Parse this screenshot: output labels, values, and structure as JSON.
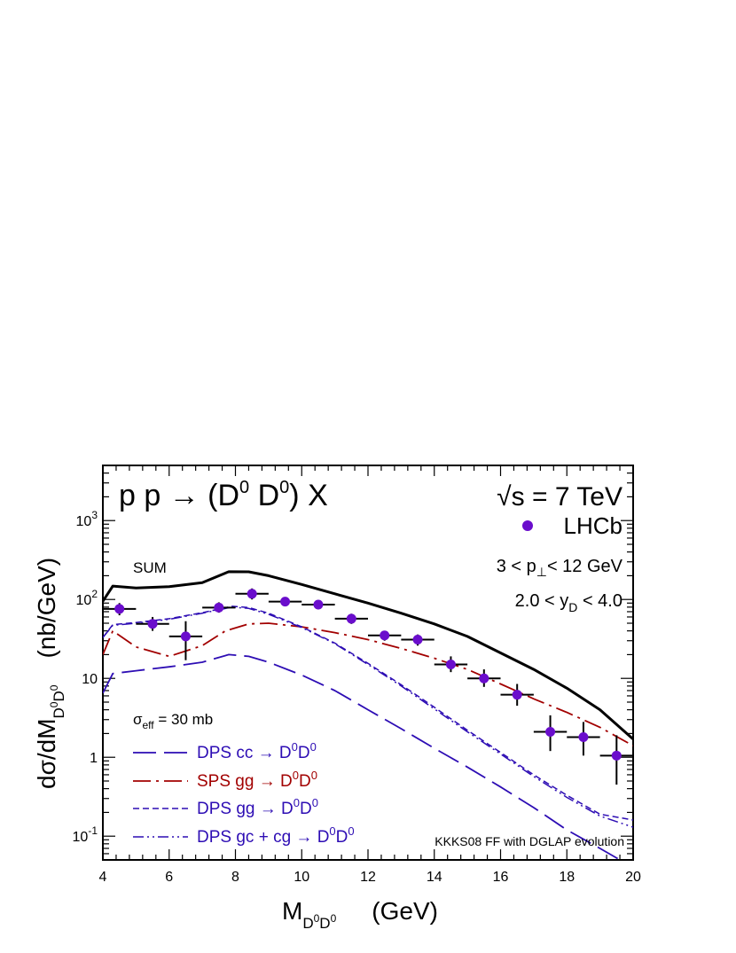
{
  "chart_data": {
    "type": "line",
    "title": "p p → (D0 D0) X",
    "energy": "√s = 7 TeV",
    "xlabel": "M_{D0D0}   (GeV)",
    "ylabel": "dσ/dM_{D0D0}   (nb/GeV)",
    "xlim": [
      4,
      20
    ],
    "ylim": [
      0.05,
      5000
    ],
    "yscale": "log",
    "xticks": [
      4,
      6,
      8,
      10,
      12,
      14,
      16,
      18,
      20
    ],
    "yticks": [
      {
        "value": 1000,
        "label": "10^3"
      },
      {
        "value": 100,
        "label": "10^2"
      },
      {
        "value": 10,
        "label": "10"
      },
      {
        "value": 1,
        "label": "1"
      },
      {
        "value": 0.1,
        "label": "10^-1"
      }
    ],
    "annotations": {
      "sum": "SUM",
      "cuts_pt": "3 < p⊥< 12 GeV",
      "cuts_y": "2.0 < yD < 4.0",
      "sigma_eff": "σeff = 30 mb",
      "ff": "KKKS08 FF with DGLAP evolution"
    },
    "series": [
      {
        "name": "SUM",
        "style": "solid",
        "color": "#000000",
        "x": [
          4,
          4.3,
          5,
          6,
          7,
          7.8,
          8.4,
          9,
          10,
          11,
          12,
          13,
          14,
          15,
          16,
          17,
          18,
          19,
          20
        ],
        "y": [
          95,
          148,
          140,
          145,
          163,
          225,
          224,
          200,
          155,
          118,
          90,
          67,
          49,
          34,
          21,
          13,
          7.5,
          4.0,
          1.7
        ]
      },
      {
        "name": "DPS cc → D0D0",
        "style": "long-dash",
        "color": "#2d0db4",
        "x": [
          4,
          4.3,
          5,
          6,
          7,
          7.8,
          8.4,
          9,
          10,
          11,
          12,
          13,
          14,
          15,
          16,
          17,
          18,
          19,
          20
        ],
        "y": [
          6.5,
          11.5,
          12.5,
          14,
          16,
          20,
          19,
          16,
          11,
          7,
          4,
          2.3,
          1.3,
          0.75,
          0.42,
          0.23,
          0.12,
          0.07,
          0.04
        ]
      },
      {
        "name": "SPS gg → D0D0",
        "style": "dash-dot",
        "color": "#a20000",
        "x": [
          4,
          4.3,
          5,
          6,
          7,
          7.7,
          8.4,
          9,
          10,
          11,
          12,
          13,
          14,
          15,
          16,
          17,
          18,
          19,
          20
        ],
        "y": [
          20,
          40,
          25,
          19,
          26,
          40,
          49,
          50,
          45,
          38,
          31,
          24,
          18,
          13,
          8.5,
          5.5,
          3.7,
          2.4,
          1.4
        ]
      },
      {
        "name": "DPS gg → D0D0",
        "style": "short-dash",
        "color": "#2d0db4",
        "x": [
          4,
          4.3,
          5,
          6,
          7,
          7.9,
          8.4,
          9,
          10,
          11,
          12,
          13,
          14,
          15,
          16,
          17,
          18,
          19,
          20
        ],
        "y": [
          33,
          48,
          51,
          57,
          68,
          82,
          79,
          67,
          45,
          28,
          15.5,
          8.3,
          4.3,
          2.2,
          1.15,
          0.6,
          0.33,
          0.19,
          0.16
        ]
      },
      {
        "name": "DPS gc + cg → D0D0",
        "style": "dash-dot-dot",
        "color": "#2d0db4",
        "x": [
          4,
          4.3,
          5,
          6,
          7,
          7.9,
          8.4,
          9,
          10,
          11,
          12,
          13,
          14,
          15,
          16,
          17,
          18,
          19,
          20
        ],
        "y": [
          33,
          47,
          50,
          56,
          67,
          80,
          77,
          65,
          44,
          27.5,
          15,
          8,
          4.1,
          2.1,
          1.1,
          0.57,
          0.31,
          0.18,
          0.13
        ]
      }
    ],
    "data_points": {
      "name": "LHCb",
      "color": "#6a0dcc",
      "points": [
        {
          "x": 4.5,
          "y": 76,
          "xerr": 0.5,
          "ylo": 63,
          "yhi": 90
        },
        {
          "x": 5.5,
          "y": 49,
          "xerr": 0.5,
          "ylo": 40,
          "yhi": 60
        },
        {
          "x": 6.5,
          "y": 34,
          "xerr": 0.5,
          "ylo": 17,
          "yhi": 53
        },
        {
          "x": 7.5,
          "y": 79,
          "xerr": 0.5,
          "ylo": 68,
          "yhi": 92
        },
        {
          "x": 8.5,
          "y": 118,
          "xerr": 0.5,
          "ylo": 100,
          "yhi": 138
        },
        {
          "x": 9.5,
          "y": 94,
          "xerr": 0.5,
          "ylo": 85,
          "yhi": 104
        },
        {
          "x": 10.5,
          "y": 86,
          "xerr": 0.5,
          "ylo": 75,
          "yhi": 98
        },
        {
          "x": 11.5,
          "y": 57,
          "xerr": 0.5,
          "ylo": 49,
          "yhi": 66
        },
        {
          "x": 12.5,
          "y": 35,
          "xerr": 0.5,
          "ylo": 30,
          "yhi": 40
        },
        {
          "x": 13.5,
          "y": 31,
          "xerr": 0.5,
          "ylo": 26,
          "yhi": 36
        },
        {
          "x": 14.5,
          "y": 15,
          "xerr": 0.5,
          "ylo": 12,
          "yhi": 19
        },
        {
          "x": 15.5,
          "y": 10,
          "xerr": 0.5,
          "ylo": 7.8,
          "yhi": 13
        },
        {
          "x": 16.5,
          "y": 6.2,
          "xerr": 0.5,
          "ylo": 4.5,
          "yhi": 8.5
        },
        {
          "x": 17.5,
          "y": 2.1,
          "xerr": 0.5,
          "ylo": 1.2,
          "yhi": 3.4
        },
        {
          "x": 18.5,
          "y": 1.8,
          "xerr": 0.5,
          "ylo": 1.05,
          "yhi": 2.8
        },
        {
          "x": 19.5,
          "y": 1.05,
          "xerr": 0.5,
          "ylo": 0.45,
          "yhi": 1.9
        }
      ]
    },
    "legend": {
      "placement": "bottom-left",
      "items": [
        {
          "label": "DPS cc → D0D0",
          "series": "DPS cc → D0D0"
        },
        {
          "label": "SPS gg → D0D0",
          "series": "SPS gg → D0D0"
        },
        {
          "label": "DPS gg → D0D0",
          "series": "DPS gg → D0D0"
        },
        {
          "label": "DPS gc + cg → D0D0",
          "series": "DPS gc + cg → D0D0"
        }
      ]
    }
  }
}
